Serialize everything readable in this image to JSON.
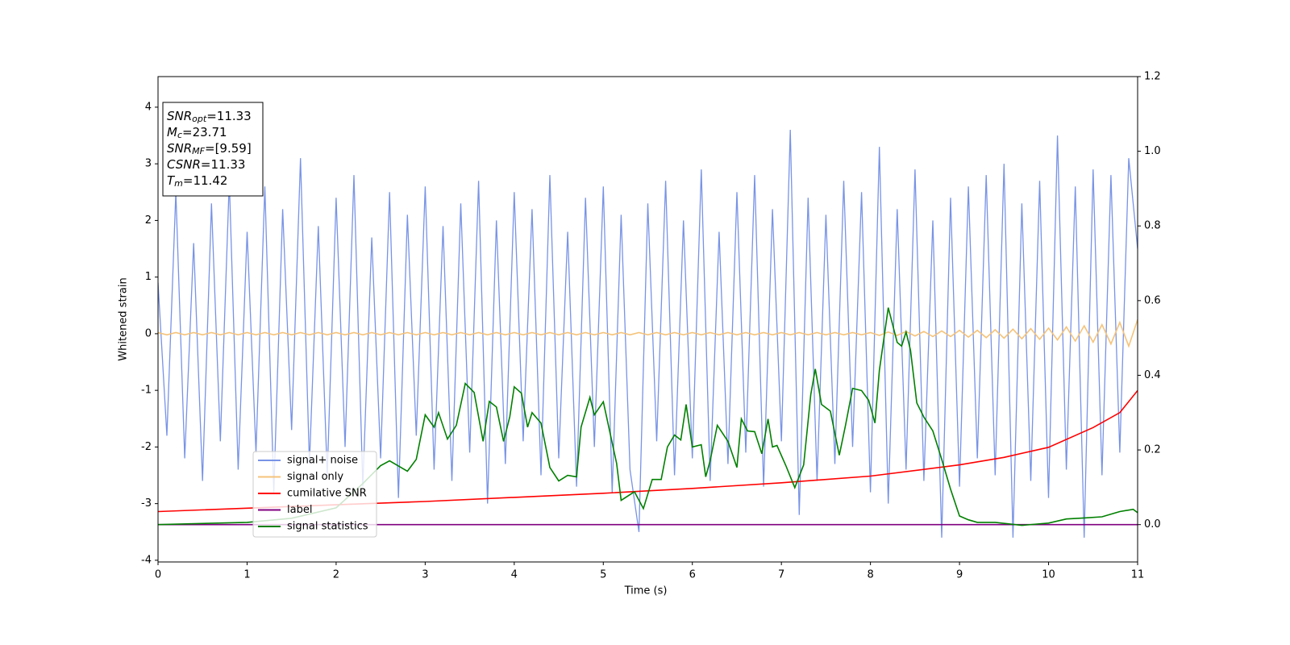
{
  "chart_data": {
    "type": "line",
    "xlabel": "Time (s)",
    "ylabel": "Whitened strain",
    "xlim": [
      0,
      11
    ],
    "xticks": [
      0,
      1,
      2,
      3,
      4,
      5,
      6,
      7,
      8,
      9,
      10,
      11
    ],
    "ylim": [
      -4.03,
      4.54
    ],
    "yticks": [
      -4,
      -3,
      -2,
      -1,
      0,
      1,
      2,
      3,
      4
    ],
    "y2lim": [
      -0.1,
      1.2
    ],
    "y2ticks": [
      {
        "value": 0,
        "label": "0.0"
      },
      {
        "value": 0.2,
        "label": "0.2"
      },
      {
        "value": 0.4,
        "label": "0.4"
      },
      {
        "value": 0.6,
        "label": "0.6"
      },
      {
        "value": 0.8,
        "label": "0.8"
      },
      {
        "value": 1,
        "label": "1.0"
      },
      {
        "value": 1.2,
        "label": "1.2"
      }
    ],
    "legend": "lower left",
    "annotation": [
      {
        "main": "SNR",
        "sub": "opt",
        "rest": "=11.33"
      },
      {
        "main": "M",
        "sub": "c",
        "rest": "=23.71"
      },
      {
        "main": "SNR",
        "sub": "MF",
        "rest": "=[9.59]"
      },
      {
        "main": "CSNR",
        "sub": "",
        "rest": "=11.33"
      },
      {
        "main": "T",
        "sub": "m",
        "rest": "=11.42"
      }
    ],
    "x": [
      0,
      0.1,
      0.2,
      0.3,
      0.4,
      0.5,
      0.6,
      0.7,
      0.8,
      0.9,
      1,
      1.1,
      1.2,
      1.3,
      1.4,
      1.5,
      1.6,
      1.7,
      1.8,
      1.9,
      2,
      2.1,
      2.2,
      2.3,
      2.4,
      2.5,
      2.6,
      2.7,
      2.8,
      2.9,
      3,
      3.1,
      3.2,
      3.3,
      3.4,
      3.5,
      3.6,
      3.7,
      3.8,
      3.9,
      4,
      4.1,
      4.2,
      4.3,
      4.4,
      4.5,
      4.6,
      4.7,
      4.8,
      4.9,
      5,
      5.1,
      5.2,
      5.3,
      5.4,
      5.5,
      5.6,
      5.7,
      5.8,
      5.9,
      6,
      6.1,
      6.2,
      6.3,
      6.4,
      6.5,
      6.6,
      6.7,
      6.8,
      6.9,
      7,
      7.1,
      7.2,
      7.3,
      7.4,
      7.5,
      7.6,
      7.7,
      7.8,
      7.9,
      8,
      8.1,
      8.2,
      8.3,
      8.4,
      8.5,
      8.6,
      8.7,
      8.8,
      8.9,
      9,
      9.1,
      9.2,
      9.3,
      9.4,
      9.5,
      9.6,
      9.7,
      9.8,
      9.9,
      10,
      10.1,
      10.2,
      10.3,
      10.4,
      10.5,
      10.6,
      10.7,
      10.8,
      10.9,
      11
    ],
    "series": [
      {
        "name": "signal+ noise",
        "color": "#7893e6",
        "values": [
          0.9,
          -1.8,
          2.5,
          -2.2,
          1.6,
          -2.6,
          2.3,
          -1.9,
          2.7,
          -2.4,
          1.8,
          -2.1,
          2.6,
          -2.8,
          2.2,
          -1.7,
          3.1,
          -2.3,
          1.9,
          -2.5,
          2.4,
          -2.0,
          2.8,
          -2.7,
          1.7,
          -2.2,
          2.5,
          -2.9,
          2.1,
          -1.8,
          2.6,
          -2.4,
          1.9,
          -2.6,
          2.3,
          -2.1,
          2.7,
          -3.0,
          2.0,
          -2.3,
          2.5,
          -1.9,
          2.2,
          -2.5,
          2.8,
          -2.2,
          1.8,
          -2.7,
          2.4,
          -2.0,
          2.6,
          -2.8,
          2.1,
          -2.4,
          -3.5,
          2.3,
          -1.9,
          2.7,
          -2.5,
          2.0,
          -2.2,
          2.9,
          -2.6,
          1.8,
          -2.3,
          2.5,
          -2.1,
          2.8,
          -2.7,
          2.2,
          -1.9,
          3.6,
          -3.2,
          2.4,
          -2.6,
          2.1,
          -2.3,
          2.7,
          -2.0,
          2.5,
          -2.8,
          3.3,
          -3.0,
          2.2,
          -2.4,
          2.9,
          -2.6,
          2.0,
          -3.6,
          2.4,
          -2.7,
          2.6,
          -2.2,
          2.8,
          -2.5,
          3.0,
          -3.6,
          2.3,
          -2.6,
          2.7,
          -2.9,
          3.5,
          -2.4,
          2.6,
          -3.6,
          2.9,
          -2.5,
          2.8,
          -2.1,
          3.1,
          1.5
        ]
      },
      {
        "name": "signal only",
        "color": "#f5c37a",
        "values": [
          0.02,
          -0.02,
          0.02,
          -0.02,
          0.02,
          -0.02,
          0.02,
          -0.02,
          0.02,
          -0.02,
          0.02,
          -0.02,
          0.02,
          -0.02,
          0.02,
          -0.02,
          0.02,
          -0.02,
          0.02,
          -0.02,
          0.02,
          -0.02,
          0.02,
          -0.02,
          0.02,
          -0.02,
          0.02,
          -0.02,
          0.02,
          -0.02,
          0.02,
          -0.02,
          0.02,
          -0.02,
          0.02,
          -0.02,
          0.02,
          -0.02,
          0.02,
          -0.02,
          0.02,
          -0.02,
          0.02,
          -0.02,
          0.02,
          -0.02,
          0.02,
          -0.02,
          0.02,
          -0.02,
          0.02,
          -0.02,
          0.02,
          -0.02,
          0.02,
          -0.02,
          0.02,
          -0.02,
          0.02,
          -0.02,
          0.02,
          -0.02,
          0.02,
          -0.02,
          0.02,
          -0.02,
          0.02,
          -0.02,
          0.02,
          -0.02,
          0.02,
          -0.02,
          0.02,
          -0.02,
          0.02,
          -0.02,
          0.02,
          -0.02,
          0.02,
          -0.02,
          0.02,
          -0.03,
          0.03,
          -0.03,
          0.04,
          -0.04,
          0.04,
          -0.05,
          0.05,
          -0.05,
          0.06,
          -0.06,
          0.06,
          -0.07,
          0.07,
          -0.08,
          0.08,
          -0.09,
          0.09,
          -0.1,
          0.1,
          -0.11,
          0.12,
          -0.13,
          0.14,
          -0.15,
          0.16,
          -0.18,
          0.2,
          -0.22,
          0.25
        ]
      },
      {
        "name": "cumilative SNR",
        "color": "#ff0000",
        "axis": "y2",
        "x": [
          0,
          1,
          2,
          3,
          4,
          5,
          6,
          7,
          8,
          9,
          9.5,
          10,
          10.5,
          10.8,
          11
        ],
        "values": [
          0.035,
          0.044,
          0.053,
          0.062,
          0.073,
          0.084,
          0.097,
          0.112,
          0.13,
          0.16,
          0.18,
          0.207,
          0.26,
          0.3,
          0.359
        ]
      },
      {
        "name": "label",
        "color": "#800080",
        "axis": "y2",
        "x": [
          0,
          11
        ],
        "values": [
          0,
          0
        ]
      },
      {
        "name": "signal statistics",
        "color": "#008000",
        "axis": "y2",
        "x": [
          0,
          1,
          1.5,
          2,
          2.3,
          2.5,
          2.6,
          2.8,
          2.9,
          3.0,
          3.1,
          3.15,
          3.25,
          3.35,
          3.45,
          3.55,
          3.65,
          3.72,
          3.8,
          3.88,
          3.95,
          4.0,
          4.08,
          4.15,
          4.2,
          4.3,
          4.4,
          4.5,
          4.6,
          4.7,
          4.75,
          4.85,
          4.9,
          5.0,
          5.1,
          5.15,
          5.2,
          5.35,
          5.45,
          5.55,
          5.65,
          5.72,
          5.8,
          5.87,
          5.93,
          6.0,
          6.1,
          6.15,
          6.2,
          6.28,
          6.4,
          6.5,
          6.55,
          6.62,
          6.7,
          6.78,
          6.85,
          6.9,
          6.95,
          7.05,
          7.15,
          7.25,
          7.33,
          7.38,
          7.45,
          7.55,
          7.65,
          7.72,
          7.8,
          7.9,
          7.98,
          8.05,
          8.1,
          8.2,
          8.3,
          8.35,
          8.4,
          8.45,
          8.52,
          8.6,
          8.7,
          8.8,
          8.9,
          9.0,
          9.1,
          9.2,
          9.4,
          9.7,
          10,
          10.2,
          10.4,
          10.6,
          10.8,
          10.95,
          11
        ],
        "values": [
          0,
          0.006,
          0.017,
          0.045,
          0.11,
          0.158,
          0.171,
          0.143,
          0.175,
          0.294,
          0.261,
          0.3,
          0.229,
          0.266,
          0.378,
          0.354,
          0.223,
          0.33,
          0.315,
          0.223,
          0.289,
          0.369,
          0.352,
          0.261,
          0.3,
          0.272,
          0.153,
          0.117,
          0.132,
          0.128,
          0.261,
          0.341,
          0.294,
          0.329,
          0.219,
          0.164,
          0.065,
          0.088,
          0.043,
          0.121,
          0.121,
          0.208,
          0.24,
          0.227,
          0.322,
          0.208,
          0.214,
          0.128,
          0.171,
          0.266,
          0.223,
          0.153,
          0.283,
          0.251,
          0.249,
          0.19,
          0.283,
          0.208,
          0.212,
          0.158,
          0.099,
          0.16,
          0.348,
          0.417,
          0.322,
          0.304,
          0.186,
          0.266,
          0.365,
          0.359,
          0.333,
          0.272,
          0.413,
          0.581,
          0.488,
          0.478,
          0.516,
          0.467,
          0.326,
          0.288,
          0.251,
          0.175,
          0.095,
          0.023,
          0.013,
          0.006,
          0.006,
          -0.002,
          0.004,
          0.015,
          0.018,
          0.021,
          0.035,
          0.041,
          0.032
        ]
      }
    ]
  }
}
